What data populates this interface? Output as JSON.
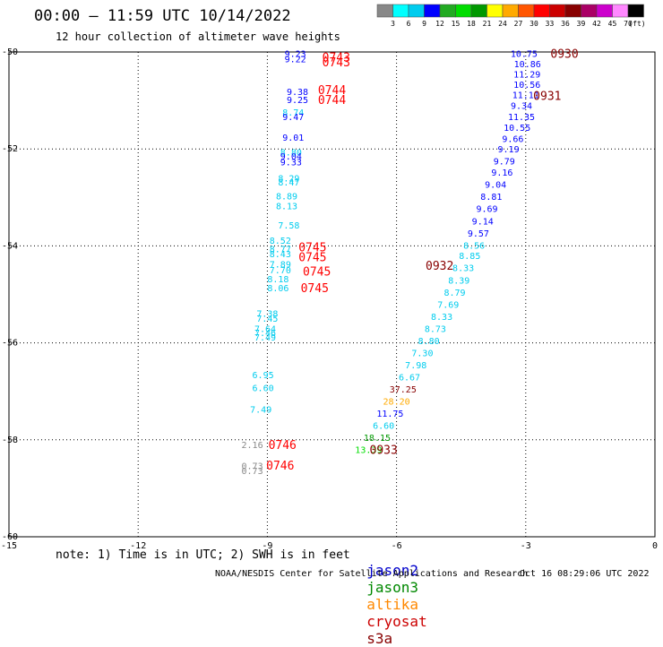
{
  "title": "00:00 – 11:59 UTC 10/14/2022",
  "subtitle": "12 hour collection of altimeter wave heights",
  "note": "note: 1) Time is in UTC; 2) SWH is in feet",
  "credit": "NOAA/NESDIS Center for Satellite Applications and Research",
  "timestamp": "Oct 16 08:29:06 UTC 2022",
  "satellites": [
    {
      "name": "jason2",
      "color": "#0000cc"
    },
    {
      "name": "jason3",
      "color": "#008800"
    },
    {
      "name": "altika",
      "color": "#ff8800"
    },
    {
      "name": "cryosat",
      "color": "#cc0000"
    },
    {
      "name": "s3a",
      "color": "#880000"
    }
  ],
  "colorbar": {
    "colors": [
      "#888888",
      "#00ffff",
      "#00ccee",
      "#0000ff",
      "#22aa22",
      "#00dd00",
      "#009900",
      "#ffff00",
      "#ffaa00",
      "#ff5500",
      "#ff0000",
      "#cc0000",
      "#880000",
      "#aa0066",
      "#cc00cc",
      "#ff88ff",
      "#000000"
    ],
    "labels": [
      "3",
      "6",
      "9",
      "12",
      "15",
      "18",
      "21",
      "24",
      "27",
      "30",
      "33",
      "36",
      "39",
      "42",
      "45",
      "70",
      "(ft)"
    ]
  },
  "chart_data": {
    "type": "scatter",
    "title": "00:00 – 11:59 UTC 10/14/2022",
    "subtitle": "12 hour collection of altimeter wave heights",
    "xlim": [
      -15,
      0
    ],
    "ylim": [
      -60,
      -50
    ],
    "grid": true,
    "xticks": [
      -15,
      -12,
      -9,
      -6,
      -3,
      0
    ],
    "yticks": [
      -50,
      -52,
      -54,
      -56,
      -58,
      -60
    ],
    "wave_heights": [
      {
        "x": -8.35,
        "y": -50.03,
        "text": "9.23",
        "color": "#0000ff"
      },
      {
        "x": -8.35,
        "y": -50.14,
        "text": "9.22",
        "color": "#0000ff"
      },
      {
        "x": -8.3,
        "y": -50.81,
        "text": "9.38",
        "color": "#0000ff"
      },
      {
        "x": -8.3,
        "y": -50.98,
        "text": "9.25",
        "color": "#0000ff"
      },
      {
        "x": -8.4,
        "y": -51.24,
        "text": "8.74",
        "color": "#00ccee"
      },
      {
        "x": -8.4,
        "y": -51.33,
        "text": "9.47",
        "color": "#0000ff"
      },
      {
        "x": -8.4,
        "y": -51.76,
        "text": "9.01",
        "color": "#0000ff"
      },
      {
        "x": -8.45,
        "y": -52.06,
        "text": "8.80",
        "color": "#00ccee"
      },
      {
        "x": -8.45,
        "y": -52.14,
        "text": "9.04",
        "color": "#0000ff"
      },
      {
        "x": -8.45,
        "y": -52.26,
        "text": "9.33",
        "color": "#0000ff"
      },
      {
        "x": -8.5,
        "y": -52.6,
        "text": "8.29",
        "color": "#00ccee"
      },
      {
        "x": -8.5,
        "y": -52.68,
        "text": "8.47",
        "color": "#00ccee"
      },
      {
        "x": -8.55,
        "y": -52.97,
        "text": "8.89",
        "color": "#00ccee"
      },
      {
        "x": -8.55,
        "y": -53.17,
        "text": "8.13",
        "color": "#00ccee"
      },
      {
        "x": -8.5,
        "y": -53.57,
        "text": "7.58",
        "color": "#00ccee"
      },
      {
        "x": -8.7,
        "y": -53.88,
        "text": "8.52",
        "color": "#00ccee"
      },
      {
        "x": -8.7,
        "y": -54.06,
        "text": "8.77",
        "color": "#00ccee"
      },
      {
        "x": -8.7,
        "y": -54.16,
        "text": "8.43",
        "color": "#00ccee"
      },
      {
        "x": -8.7,
        "y": -54.37,
        "text": "7.89",
        "color": "#00ccee"
      },
      {
        "x": -8.7,
        "y": -54.49,
        "text": "7.70",
        "color": "#00ccee"
      },
      {
        "x": -8.75,
        "y": -54.68,
        "text": "8.18",
        "color": "#00ccee"
      },
      {
        "x": -8.75,
        "y": -54.86,
        "text": "8.06",
        "color": "#00ccee"
      },
      {
        "x": -9.0,
        "y": -55.39,
        "text": "7.38",
        "color": "#00ccee"
      },
      {
        "x": -9.0,
        "y": -55.49,
        "text": "7.45",
        "color": "#00ccee"
      },
      {
        "x": -9.05,
        "y": -55.7,
        "text": "7.64",
        "color": "#00ccee"
      },
      {
        "x": -9.05,
        "y": -55.79,
        "text": "7.46",
        "color": "#00ccee"
      },
      {
        "x": -9.05,
        "y": -55.88,
        "text": "7.49",
        "color": "#00ccee"
      },
      {
        "x": -9.1,
        "y": -56.65,
        "text": "6.95",
        "color": "#00ccee"
      },
      {
        "x": -9.1,
        "y": -56.92,
        "text": "6.60",
        "color": "#00ccee"
      },
      {
        "x": -9.15,
        "y": -57.37,
        "text": "7.49",
        "color": "#00ccee"
      },
      {
        "x": -9.35,
        "y": -58.1,
        "text": "2.16",
        "color": "#888888"
      },
      {
        "x": -9.35,
        "y": -58.53,
        "text": "0.73",
        "color": "#888888"
      },
      {
        "x": -9.35,
        "y": -58.63,
        "text": "0.73",
        "color": "#888888"
      },
      {
        "x": -3.04,
        "y": -50.03,
        "text": "10.75",
        "color": "#0000ff"
      },
      {
        "x": -2.96,
        "y": -50.24,
        "text": "10.86",
        "color": "#0000ff"
      },
      {
        "x": -2.97,
        "y": -50.45,
        "text": "11.29",
        "color": "#0000ff"
      },
      {
        "x": -2.97,
        "y": -50.67,
        "text": "10.56",
        "color": "#0000ff"
      },
      {
        "x": -3.0,
        "y": -50.88,
        "text": "11.11",
        "color": "#0000ff"
      },
      {
        "x": -3.1,
        "y": -51.1,
        "text": "9.34",
        "color": "#0000ff"
      },
      {
        "x": -3.1,
        "y": -51.33,
        "text": "11.35",
        "color": "#0000ff"
      },
      {
        "x": -3.2,
        "y": -51.55,
        "text": "10.55",
        "color": "#0000ff"
      },
      {
        "x": -3.3,
        "y": -51.78,
        "text": "9.66",
        "color": "#0000ff"
      },
      {
        "x": -3.4,
        "y": -52.0,
        "text": "9.19",
        "color": "#0000ff"
      },
      {
        "x": -3.5,
        "y": -52.25,
        "text": "9.79",
        "color": "#0000ff"
      },
      {
        "x": -3.55,
        "y": -52.48,
        "text": "9.16",
        "color": "#0000ff"
      },
      {
        "x": -3.7,
        "y": -52.73,
        "text": "9.04",
        "color": "#0000ff"
      },
      {
        "x": -3.8,
        "y": -52.98,
        "text": "8.81",
        "color": "#0000ff"
      },
      {
        "x": -3.9,
        "y": -53.23,
        "text": "9.69",
        "color": "#0000ff"
      },
      {
        "x": -4.0,
        "y": -53.48,
        "text": "9.14",
        "color": "#0000ff"
      },
      {
        "x": -4.1,
        "y": -53.73,
        "text": "9.57",
        "color": "#0000ff"
      },
      {
        "x": -4.2,
        "y": -53.98,
        "text": "8.56",
        "color": "#00ccee"
      },
      {
        "x": -4.3,
        "y": -54.2,
        "text": "8.85",
        "color": "#00ccee"
      },
      {
        "x": -4.45,
        "y": -54.45,
        "text": "8.33",
        "color": "#00ccee"
      },
      {
        "x": -4.55,
        "y": -54.7,
        "text": "8.39",
        "color": "#00ccee"
      },
      {
        "x": -4.65,
        "y": -54.95,
        "text": "8.79",
        "color": "#00ccee"
      },
      {
        "x": -4.8,
        "y": -55.2,
        "text": "7.69",
        "color": "#00ccee"
      },
      {
        "x": -4.95,
        "y": -55.45,
        "text": "8.33",
        "color": "#00ccee"
      },
      {
        "x": -5.1,
        "y": -55.7,
        "text": "8.73",
        "color": "#00ccee"
      },
      {
        "x": -5.25,
        "y": -55.95,
        "text": "8.80",
        "color": "#00ccee"
      },
      {
        "x": -5.4,
        "y": -56.2,
        "text": "7.30",
        "color": "#00ccee"
      },
      {
        "x": -5.55,
        "y": -56.45,
        "text": "7.98",
        "color": "#00ccee"
      },
      {
        "x": -5.7,
        "y": -56.7,
        "text": "6.67",
        "color": "#00ccee"
      },
      {
        "x": -5.85,
        "y": -56.95,
        "text": "37.25",
        "color": "#880000"
      },
      {
        "x": -6.0,
        "y": -57.2,
        "text": "28.20",
        "color": "#ffaa00"
      },
      {
        "x": -6.15,
        "y": -57.45,
        "text": "11.75",
        "color": "#0000ff"
      },
      {
        "x": -6.3,
        "y": -57.7,
        "text": "6.60",
        "color": "#00ccee"
      },
      {
        "x": -6.45,
        "y": -57.95,
        "text": "18.15",
        "color": "#009900"
      },
      {
        "x": -6.65,
        "y": -58.2,
        "text": "13.39",
        "color": "#00dd00"
      }
    ],
    "time_labels": [
      {
        "x": -7.4,
        "y": -50.1,
        "text": "0743",
        "color": "#ff0000"
      },
      {
        "x": -7.4,
        "y": -50.2,
        "text": "0743",
        "color": "#ff0000"
      },
      {
        "x": -7.5,
        "y": -50.78,
        "text": "0744",
        "color": "#ff0000"
      },
      {
        "x": -7.5,
        "y": -50.98,
        "text": "0744",
        "color": "#ff0000"
      },
      {
        "x": -7.95,
        "y": -54.02,
        "text": "0745",
        "color": "#ff0000"
      },
      {
        "x": -7.95,
        "y": -54.22,
        "text": "0745",
        "color": "#ff0000"
      },
      {
        "x": -7.85,
        "y": -54.52,
        "text": "0745",
        "color": "#ff0000"
      },
      {
        "x": -7.9,
        "y": -54.86,
        "text": "0745",
        "color": "#ff0000"
      },
      {
        "x": -8.65,
        "y": -58.1,
        "text": "0746",
        "color": "#ff0000"
      },
      {
        "x": -8.7,
        "y": -58.52,
        "text": "0746",
        "color": "#ff0000"
      },
      {
        "x": -2.1,
        "y": -50.03,
        "text": "0930",
        "color": "#880000"
      },
      {
        "x": -2.5,
        "y": -50.9,
        "text": "0931",
        "color": "#880000"
      },
      {
        "x": -5.0,
        "y": -54.4,
        "text": "0932",
        "color": "#880000"
      },
      {
        "x": -6.3,
        "y": -58.2,
        "text": "0933",
        "color": "#880000"
      }
    ]
  }
}
